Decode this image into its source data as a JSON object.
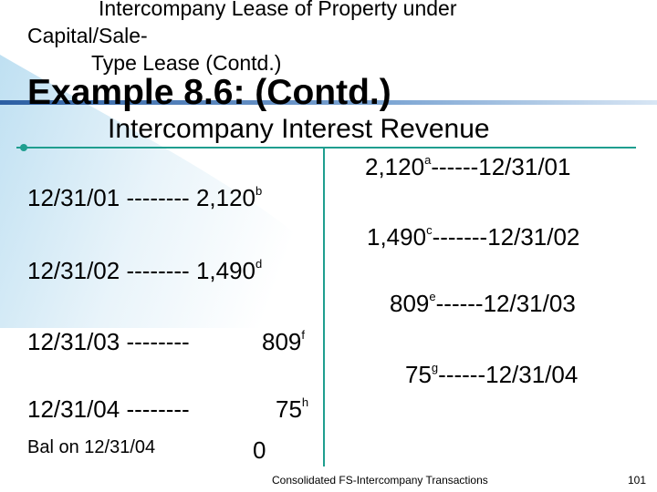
{
  "colors": {
    "accent": "#1f9e8f",
    "gradient_start": "#bfe0f2",
    "title_line": "#3a6fb0"
  },
  "header": {
    "line1": "Intercompany Lease of Property under",
    "line2": "Capital/Sale-",
    "line3": "Type Lease (Contd.)"
  },
  "title": "Example 8.6: (Contd.)",
  "account": {
    "name": "Intercompany Interest Revenue",
    "debits": [
      {
        "date": "12/31/01",
        "dashes": "--------",
        "amount": "2,120",
        "note": "b"
      },
      {
        "date": "12/31/02",
        "dashes": "--------",
        "amount": "1,490",
        "note": "d"
      },
      {
        "date": "12/31/03",
        "dashes": "--------",
        "amount": "809",
        "note": "f"
      },
      {
        "date": "12/31/04",
        "dashes": "--------",
        "amount": "75",
        "note": "h"
      }
    ],
    "credits": [
      {
        "amount": "2,120",
        "note": "a",
        "dashes": "------",
        "date": "12/31/01"
      },
      {
        "amount": "1,490",
        "note": "c",
        "dashes": "-------",
        "date": "12/31/02"
      },
      {
        "amount": "809",
        "note": "e",
        "dashes": "------",
        "date": "12/31/03"
      },
      {
        "amount": "75",
        "note": "g",
        "dashes": "------",
        "date": "12/31/04"
      }
    ],
    "balance_label": "Bal on 12/31/04",
    "balance_value": "0"
  },
  "footer": {
    "text": "Consolidated FS-Intercompany  Transactions",
    "page": "101"
  }
}
